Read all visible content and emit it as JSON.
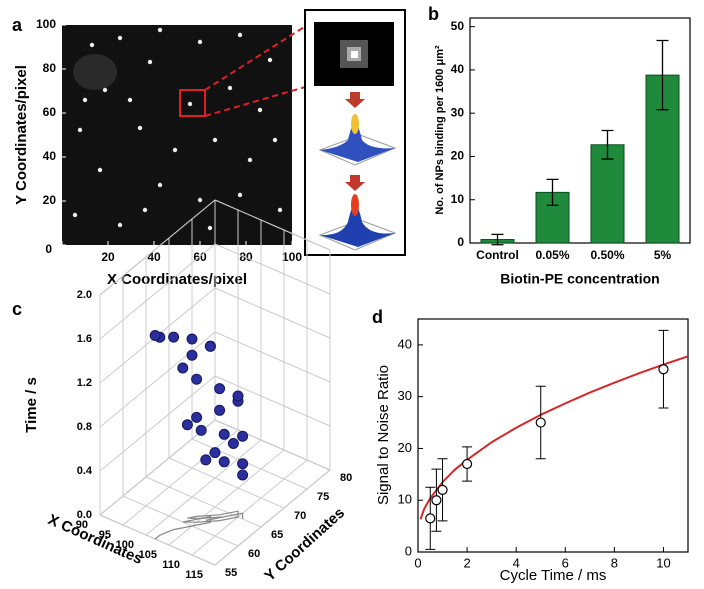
{
  "chart_data": [
    {
      "type": "image",
      "panel": "a",
      "xlabel": "X Coordinates/pixel",
      "ylabel": "Y Coordinates/pixel",
      "xlim": [
        0,
        100
      ],
      "ylim": [
        0,
        100
      ],
      "xticks": [
        0,
        20,
        40,
        60,
        80,
        100
      ],
      "yticks": [
        0,
        20,
        40,
        60,
        80,
        100
      ]
    },
    {
      "type": "bar",
      "panel": "b",
      "xlabel": "Biotin-PE concentration",
      "ylabel": "No. of NPs binding per 1600 μm²",
      "categories": [
        "Control",
        "0.05%",
        "0.50%",
        "5%"
      ],
      "values": [
        0.8,
        11.7,
        22.7,
        38.8
      ],
      "errors": [
        1.2,
        3.0,
        3.3,
        8.0
      ],
      "color": "#1f8a3c",
      "ylim": [
        0,
        52
      ],
      "yticks": [
        0,
        10,
        20,
        30,
        40,
        50
      ]
    },
    {
      "type": "scatter3d",
      "panel": "c",
      "xlabel": "X Coordinates",
      "ylabel": "Y Coordinates",
      "zlabel": "Time / s",
      "xlim": [
        90,
        115
      ],
      "ylim": [
        55,
        80
      ],
      "zlim": [
        0,
        2
      ],
      "xticks": [
        90,
        95,
        100,
        105,
        110,
        115
      ],
      "yticks": [
        55,
        60,
        65,
        70,
        75,
        80
      ],
      "zticks": [
        {
          "value": 0,
          "label": "0.0"
        },
        {
          "value": 0.4,
          "label": "0.4"
        },
        {
          "value": 0.8,
          "label": "0.8"
        },
        {
          "value": 1.2,
          "label": "1.2"
        },
        {
          "value": 1.6,
          "label": "1.6"
        },
        {
          "value": 2,
          "label": "2.0"
        }
      ],
      "color": "#2b2f9e",
      "shadow_color": "#888888",
      "x": [
        111,
        110,
        108,
        106,
        107,
        109,
        110,
        108,
        105,
        103,
        104,
        107,
        109,
        110,
        108,
        105,
        103,
        104,
        106,
        107,
        105,
        103,
        102,
        102
      ],
      "y": [
        65,
        66,
        64,
        62,
        63,
        65,
        66,
        64,
        62,
        61,
        62,
        64,
        66,
        65,
        63,
        61,
        60,
        61,
        63,
        62,
        60,
        58,
        56,
        55
      ],
      "z": [
        0.4,
        0.45,
        0.5,
        0.55,
        0.6,
        0.65,
        0.7,
        0.75,
        0.8,
        0.85,
        0.9,
        0.95,
        1.0,
        1.1,
        1.2,
        1.3,
        1.4,
        1.5,
        1.55,
        1.6,
        1.7,
        1.75,
        1.8,
        1.85
      ]
    },
    {
      "type": "scatter",
      "panel": "d",
      "xlabel": "Cycle Time / ms",
      "ylabel": "Signal to Noise Ratio",
      "xlim": [
        0,
        11
      ],
      "ylim": [
        0,
        45
      ],
      "xticks": [
        0,
        2,
        4,
        6,
        8,
        10
      ],
      "yticks": [
        0,
        10,
        20,
        30,
        40
      ],
      "points": {
        "x": [
          0.5,
          0.75,
          1,
          2,
          5,
          10
        ],
        "values": [
          6.5,
          10,
          12,
          17,
          25,
          35.3
        ],
        "errors": [
          6,
          6,
          6,
          3.3,
          7,
          7.5
        ]
      },
      "fit": {
        "color": "#d62728",
        "x": [
          0.1,
          0.25,
          0.5,
          1,
          1.5,
          2,
          3,
          4,
          5,
          6,
          7,
          8,
          9,
          10,
          11
        ],
        "values": [
          6.3,
          8.3,
          10.4,
          13.5,
          15.9,
          17.8,
          21.2,
          24,
          26.5,
          28.7,
          30.8,
          32.7,
          34.5,
          36.2,
          37.8
        ]
      }
    }
  ]
}
